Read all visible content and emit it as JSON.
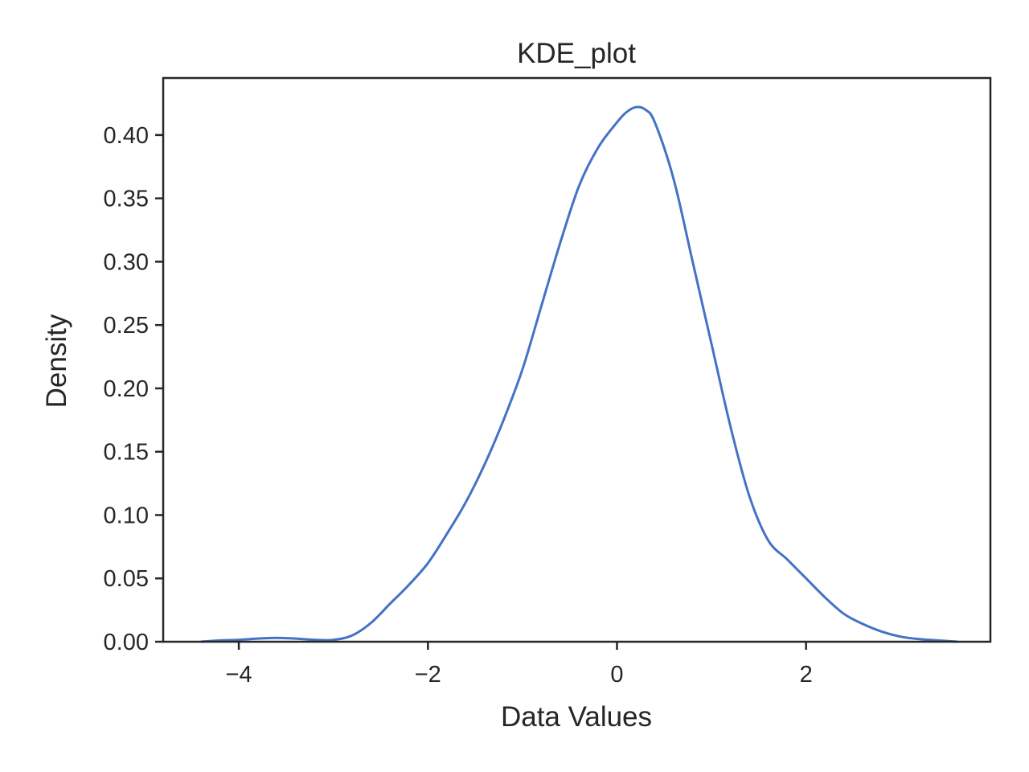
{
  "chart_data": {
    "type": "line",
    "title": "KDE_plot",
    "xlabel": "Data Values",
    "ylabel": "Density",
    "xlim": [
      -4.8,
      3.95
    ],
    "ylim": [
      0.0,
      0.445
    ],
    "x_ticks": [
      -4,
      -2,
      0,
      2
    ],
    "x_tick_labels": [
      "−4",
      "−2",
      "0",
      "2"
    ],
    "y_ticks": [
      0.0,
      0.05,
      0.1,
      0.15,
      0.2,
      0.25,
      0.3,
      0.35,
      0.4
    ],
    "y_tick_labels": [
      "0.00",
      "0.05",
      "0.10",
      "0.15",
      "0.20",
      "0.25",
      "0.30",
      "0.35",
      "0.40"
    ],
    "grid": false,
    "legend": "none",
    "series": [
      {
        "color": "#4472c4",
        "x": [
          -4.4,
          -4.2,
          -4.0,
          -3.8,
          -3.6,
          -3.4,
          -3.2,
          -3.0,
          -2.8,
          -2.6,
          -2.4,
          -2.2,
          -2.0,
          -1.8,
          -1.6,
          -1.4,
          -1.2,
          -1.0,
          -0.8,
          -0.6,
          -0.4,
          -0.2,
          0.0,
          0.1,
          0.2,
          0.3,
          0.4,
          0.6,
          0.8,
          1.0,
          1.2,
          1.4,
          1.6,
          1.8,
          2.0,
          2.2,
          2.4,
          2.6,
          2.8,
          3.0,
          3.2,
          3.4,
          3.6
        ],
        "y": [
          0.0,
          0.001,
          0.0015,
          0.0025,
          0.003,
          0.0025,
          0.0015,
          0.0015,
          0.005,
          0.015,
          0.03,
          0.045,
          0.062,
          0.085,
          0.11,
          0.14,
          0.175,
          0.215,
          0.265,
          0.315,
          0.36,
          0.39,
          0.41,
          0.418,
          0.422,
          0.42,
          0.41,
          0.365,
          0.3,
          0.235,
          0.17,
          0.115,
          0.08,
          0.065,
          0.05,
          0.035,
          0.022,
          0.014,
          0.008,
          0.004,
          0.002,
          0.001,
          0.0
        ]
      }
    ]
  }
}
